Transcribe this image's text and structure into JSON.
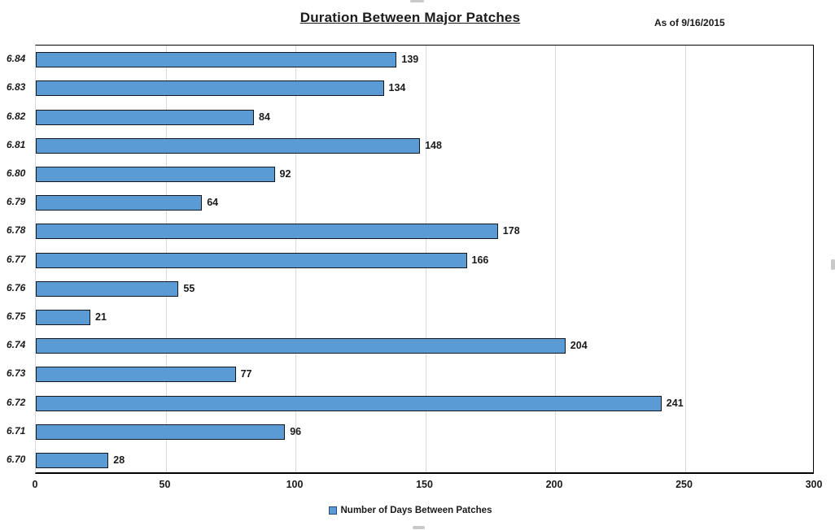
{
  "title": "Duration Between Major Patches",
  "as_of_label": "As of 9/16/2015",
  "legend": {
    "label": "Number of Days Between Patches"
  },
  "colors": {
    "bar_fill": "#5b9bd5",
    "bar_border": "#15171c",
    "gridline": "#d9d9d9",
    "axis_line": "#000000",
    "legend_marker_border": "#24497a"
  },
  "chart_data": {
    "type": "bar",
    "orientation": "horizontal",
    "title": "Duration Between Major Patches",
    "annotation": "As of 9/16/2015",
    "categories": [
      "6.84",
      "6.83",
      "6.82",
      "6.81",
      "6.80",
      "6.79",
      "6.78",
      "6.77",
      "6.76",
      "6.75",
      "6.74",
      "6.73",
      "6.72",
      "6.71",
      "6.70"
    ],
    "values": [
      139,
      134,
      84,
      148,
      92,
      64,
      178,
      166,
      55,
      21,
      204,
      77,
      241,
      96,
      28
    ],
    "series_name": "Number of Days Between Patches",
    "xlabel": "",
    "ylabel": "",
    "xlim": [
      0,
      300
    ],
    "x_ticks": [
      0,
      50,
      100,
      150,
      200,
      250,
      300
    ],
    "grid": true,
    "data_labels": true,
    "legend_position": "bottom"
  }
}
